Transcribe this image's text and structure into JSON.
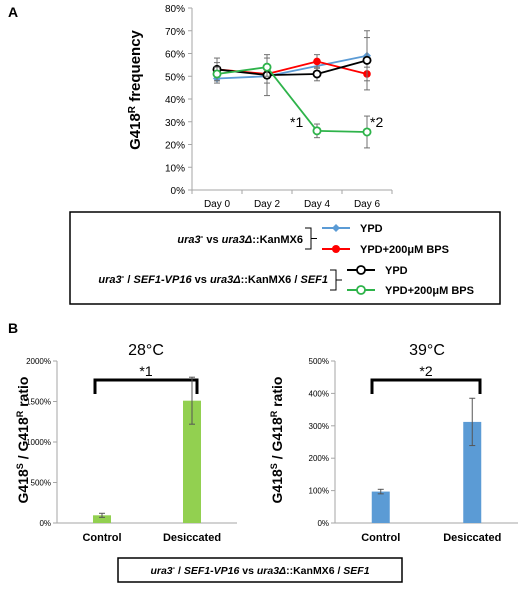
{
  "panels": {
    "a_letter": "A",
    "b_letter": "B"
  },
  "panel_a": {
    "ylabel_main": "G418",
    "ylabel_sup": "R",
    "ylabel_rest": " frequency",
    "star1": "*1",
    "star2": "*2",
    "legend": {
      "group1_label": {
        "part1": "ura3",
        "sup1": "-",
        "part2": " vs ",
        "part3": "ura3Δ",
        "part4": "::KanMX6"
      },
      "group2_label": {
        "part1": "ura3",
        "sup1": "-",
        "part2": " / ",
        "part3": "SEF1-VP16",
        "part4": " vs ",
        "part5": "ura3Δ",
        "part6": "::KanMX6 / ",
        "part7": "SEF1"
      },
      "entries": [
        "YPD",
        "YPD+200μM BPS",
        "YPD",
        "YPD+200μM BPS"
      ]
    }
  },
  "panel_b": {
    "left_temp": "28°C",
    "right_temp": "39°C",
    "left_star": "*1",
    "right_star": "*2",
    "ylabel_p1": "G418",
    "ylabel_sup1": "S",
    "ylabel_p2": " / G418",
    "ylabel_sup2": "R",
    "ylabel_p3": " ratio",
    "footer": {
      "part1": "ura3",
      "sup1": "-",
      "part2": " / ",
      "part3": "SEF1-VP16",
      "part4": " vs ",
      "part5": "ura3Δ",
      "part6": "::KanMX6 / ",
      "part7": "SEF1"
    }
  },
  "colors": {
    "blue": "#5b9bd5",
    "red": "#ff0000",
    "black": "#000000",
    "green": "#2eb34a",
    "bar_green": "#92d050",
    "bar_blue": "#5b9bd5",
    "axis": "#a6a6a6"
  },
  "chart_data": [
    {
      "type": "line",
      "categories": [
        "Day 0",
        "Day 2",
        "Day 4",
        "Day 6"
      ],
      "ylabel": "G418R frequency",
      "ylim": [
        0,
        80
      ],
      "y_ticks": [
        "0%",
        "10%",
        "20%",
        "30%",
        "40%",
        "50%",
        "60%",
        "70%",
        "80%"
      ],
      "series": [
        {
          "name": "YPD",
          "color": "#5b9bd5",
          "marker": "diamond",
          "values": [
            49,
            50,
            null,
            59
          ],
          "errors": [
            2,
            3,
            null,
            8
          ]
        },
        {
          "name": "YPD+200μM BPS",
          "color": "#ff0000",
          "marker": "circle",
          "values": [
            53,
            51,
            56.5,
            51
          ],
          "errors": [
            3,
            2,
            3,
            3
          ]
        },
        {
          "name": "YPD",
          "color": "#000000",
          "marker": "open-circle",
          "values": [
            53,
            50.5,
            51,
            57
          ],
          "errors": [
            5,
            9,
            3,
            13
          ]
        },
        {
          "name": "YPD+200μM BPS",
          "color": "#2eb34a",
          "marker": "open-circle",
          "values": [
            51,
            54,
            26,
            25.5
          ],
          "errors": [
            3,
            4,
            3,
            7
          ]
        }
      ]
    },
    {
      "type": "bar",
      "title": "28°C",
      "categories": [
        "Control",
        "Desiccated"
      ],
      "values": [
        95,
        1510
      ],
      "errors": [
        25,
        290
      ],
      "ylim": [
        0,
        2000
      ],
      "y_ticks": [
        "0%",
        "500%",
        "1000%",
        "1500%",
        "2000%"
      ],
      "ylabel": "G418S / G418R ratio",
      "color": "#92d050"
    },
    {
      "type": "bar",
      "title": "39°C",
      "categories": [
        "Control",
        "Desiccated"
      ],
      "values": [
        97,
        312
      ],
      "errors": [
        7,
        73
      ],
      "ylim": [
        0,
        500
      ],
      "y_ticks": [
        "0%",
        "100%",
        "200%",
        "300%",
        "400%",
        "500%"
      ],
      "ylabel": "G418S / G418R ratio",
      "color": "#5b9bd5"
    }
  ]
}
